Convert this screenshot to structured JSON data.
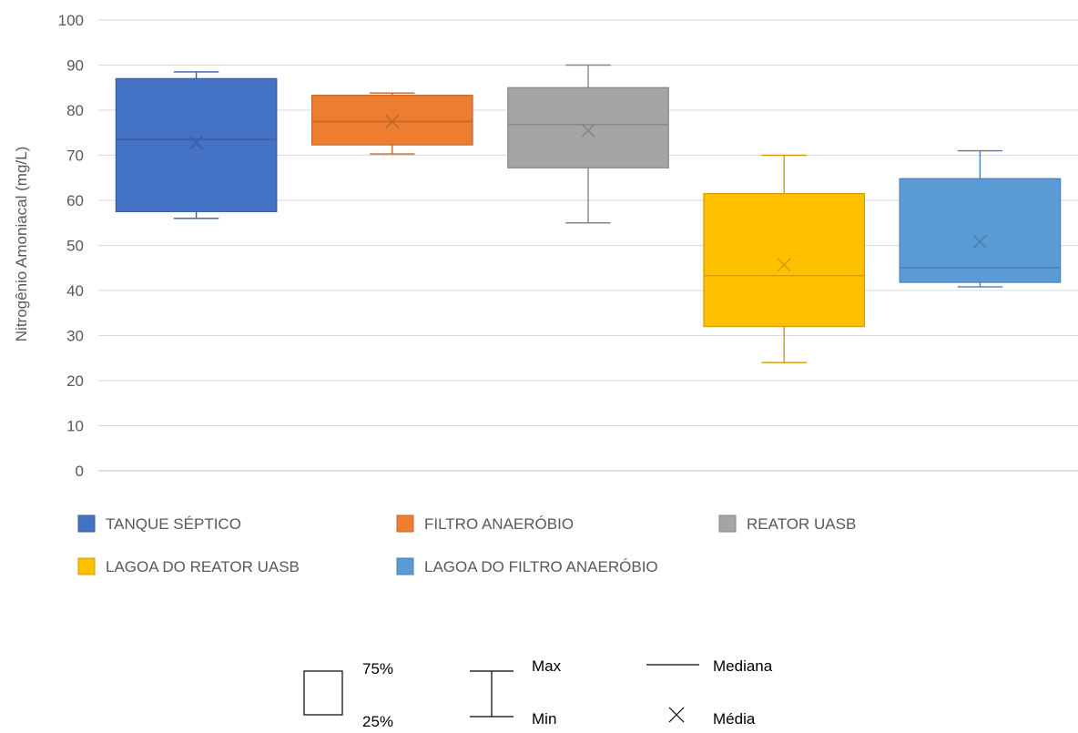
{
  "chart_data": {
    "type": "boxplot",
    "ylabel": "Nitrogênio Amoniacal (mg/L)",
    "ylim": [
      0,
      100
    ],
    "yticks": [
      "0",
      "10",
      "20",
      "30",
      "40",
      "50",
      "60",
      "70",
      "80",
      "90",
      "100"
    ],
    "grid": true,
    "legend_position": "bottom",
    "series": [
      {
        "name": "TANQUE SÉPTICO",
        "color": "#4472C4",
        "min": 56,
        "q1": 57.5,
        "median": 73.5,
        "q3": 87,
        "max": 88.5,
        "mean": 72.8
      },
      {
        "name": "FILTRO ANAERÓBIO",
        "color": "#ED7D31",
        "min": 70.3,
        "q1": 72.3,
        "median": 77.5,
        "q3": 83.3,
        "max": 83.8,
        "mean": 77.5
      },
      {
        "name": "REATOR UASB",
        "color": "#A5A5A5",
        "min": 55,
        "q1": 67.2,
        "median": 76.8,
        "q3": 85,
        "max": 90,
        "mean": 75.5
      },
      {
        "name": "LAGOA DO REATOR UASB",
        "color": "#FFC000",
        "min": 24,
        "q1": 32,
        "median": 43.3,
        "q3": 61.5,
        "max": 70,
        "mean": 45.7
      },
      {
        "name": "LAGOA DO FILTRO ANAERÓBIO",
        "color": "#5B9BD5",
        "min": 40.8,
        "q1": 41.8,
        "median": 45,
        "q3": 64.8,
        "max": 71,
        "mean": 50.8
      }
    ],
    "key": {
      "box_top": "75%",
      "box_bottom": "25%",
      "whisker_top": "Max",
      "whisker_bottom": "Min",
      "median": "Mediana",
      "mean": "Média"
    }
  }
}
